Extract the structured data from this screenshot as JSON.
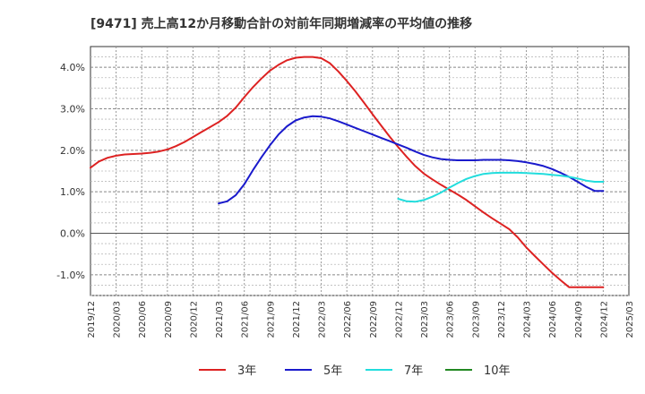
{
  "chart_data": {
    "type": "line",
    "title": "[9471]  売上高12か月移動合計の対前年同期増減率の平均値の推移",
    "xlabel": "",
    "ylabel": "",
    "x_ticks": [
      "2019/12",
      "2020/03",
      "2020/06",
      "2020/09",
      "2020/12",
      "2021/03",
      "2021/06",
      "2021/09",
      "2021/12",
      "2022/03",
      "2022/06",
      "2022/09",
      "2022/12",
      "2023/03",
      "2023/06",
      "2023/09",
      "2023/12",
      "2024/03",
      "2024/06",
      "2024/09",
      "2024/12",
      "2025/03"
    ],
    "y_ticks": [
      "-1.0%",
      "0.0%",
      "1.0%",
      "2.0%",
      "3.0%",
      "4.0%"
    ],
    "ylim": [
      -1.5,
      4.5
    ],
    "grid": true,
    "legend_position": "bottom",
    "series": [
      {
        "name": "3年",
        "color": "#dd2222",
        "x": [
          "2019/12",
          "2020/01",
          "2020/02",
          "2020/03",
          "2020/04",
          "2020/05",
          "2020/06",
          "2020/07",
          "2020/08",
          "2020/09",
          "2020/10",
          "2020/11",
          "2020/12",
          "2021/01",
          "2021/02",
          "2021/03",
          "2021/04",
          "2021/05",
          "2021/06",
          "2021/07",
          "2021/08",
          "2021/09",
          "2021/10",
          "2021/11",
          "2021/12",
          "2022/01",
          "2022/02",
          "2022/03",
          "2022/04",
          "2022/05",
          "2022/06",
          "2022/07",
          "2022/08",
          "2022/09",
          "2022/10",
          "2022/11",
          "2022/12",
          "2023/01",
          "2023/02",
          "2023/03",
          "2023/04",
          "2023/05",
          "2023/06",
          "2023/07",
          "2023/08",
          "2023/09",
          "2023/10",
          "2023/11",
          "2023/12",
          "2024/01",
          "2024/02",
          "2024/03",
          "2024/04",
          "2024/05",
          "2024/06",
          "2024/07",
          "2024/08",
          "2024/09",
          "2024/10",
          "2024/11",
          "2024/12"
        ],
        "values": [
          1.58,
          1.73,
          1.82,
          1.87,
          1.9,
          1.91,
          1.92,
          1.94,
          1.97,
          2.02,
          2.1,
          2.2,
          2.32,
          2.44,
          2.56,
          2.68,
          2.83,
          3.03,
          3.28,
          3.52,
          3.73,
          3.92,
          4.06,
          4.17,
          4.23,
          4.25,
          4.25,
          4.22,
          4.1,
          3.9,
          3.67,
          3.42,
          3.15,
          2.87,
          2.6,
          2.33,
          2.08,
          1.84,
          1.62,
          1.44,
          1.3,
          1.17,
          1.05,
          0.93,
          0.8,
          0.65,
          0.5,
          0.36,
          0.23,
          0.1,
          -0.1,
          -0.34,
          -0.55,
          -0.75,
          -0.95,
          -1.13,
          -1.3,
          -1.3,
          -1.3,
          -1.3,
          -1.3
        ]
      },
      {
        "name": "5年",
        "color": "#1a1acc",
        "x": [
          "2021/03",
          "2021/04",
          "2021/05",
          "2021/06",
          "2021/07",
          "2021/08",
          "2021/09",
          "2021/10",
          "2021/11",
          "2021/12",
          "2022/01",
          "2022/02",
          "2022/03",
          "2022/04",
          "2022/05",
          "2022/06",
          "2022/07",
          "2022/08",
          "2022/09",
          "2022/10",
          "2022/11",
          "2022/12",
          "2023/01",
          "2023/02",
          "2023/03",
          "2023/04",
          "2023/05",
          "2023/06",
          "2023/07",
          "2023/08",
          "2023/09",
          "2023/10",
          "2023/11",
          "2023/12",
          "2024/01",
          "2024/02",
          "2024/03",
          "2024/04",
          "2024/05",
          "2024/06",
          "2024/07",
          "2024/08",
          "2024/09",
          "2024/10",
          "2024/11",
          "2024/12"
        ],
        "values": [
          0.72,
          0.77,
          0.92,
          1.18,
          1.52,
          1.83,
          2.12,
          2.38,
          2.58,
          2.72,
          2.79,
          2.82,
          2.81,
          2.77,
          2.7,
          2.62,
          2.54,
          2.46,
          2.38,
          2.3,
          2.22,
          2.14,
          2.06,
          1.97,
          1.89,
          1.83,
          1.79,
          1.77,
          1.76,
          1.76,
          1.76,
          1.77,
          1.77,
          1.77,
          1.76,
          1.74,
          1.71,
          1.67,
          1.62,
          1.55,
          1.46,
          1.36,
          1.24,
          1.12,
          1.02,
          1.02
        ]
      },
      {
        "name": "7年",
        "color": "#22dddd",
        "x": [
          "2022/12",
          "2023/01",
          "2023/02",
          "2023/03",
          "2023/04",
          "2023/05",
          "2023/06",
          "2023/07",
          "2023/08",
          "2023/09",
          "2023/10",
          "2023/11",
          "2023/12",
          "2024/01",
          "2024/02",
          "2024/03",
          "2024/04",
          "2024/05",
          "2024/06",
          "2024/07",
          "2024/08",
          "2024/09",
          "2024/10",
          "2024/11",
          "2024/12"
        ],
        "values": [
          0.83,
          0.77,
          0.76,
          0.8,
          0.88,
          0.98,
          1.1,
          1.21,
          1.31,
          1.38,
          1.43,
          1.45,
          1.46,
          1.46,
          1.46,
          1.45,
          1.44,
          1.43,
          1.41,
          1.39,
          1.36,
          1.32,
          1.27,
          1.24,
          1.24
        ]
      },
      {
        "name": "10年",
        "color": "#228822",
        "x": [],
        "values": []
      }
    ]
  }
}
